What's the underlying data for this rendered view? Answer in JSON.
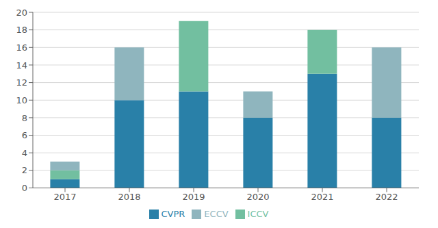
{
  "chart_data": {
    "type": "bar",
    "stacked": true,
    "categories": [
      "2017",
      "2018",
      "2019",
      "2020",
      "2021",
      "2022"
    ],
    "series": [
      {
        "name": "CVPR",
        "color": "#2980a8",
        "values": [
          1,
          10,
          11,
          8,
          13,
          8
        ]
      },
      {
        "name": "ICCV",
        "color": "#72bfa0",
        "values": [
          1,
          0,
          8,
          0,
          5,
          0
        ]
      },
      {
        "name": "ECCV",
        "color": "#8fb5be",
        "values": [
          1,
          6,
          0,
          3,
          0,
          8
        ]
      }
    ],
    "ylim": [
      0,
      20
    ],
    "yticks": [
      0,
      2,
      4,
      6,
      8,
      10,
      12,
      14,
      16,
      18,
      20
    ],
    "grid": true,
    "legend": "bottom"
  }
}
